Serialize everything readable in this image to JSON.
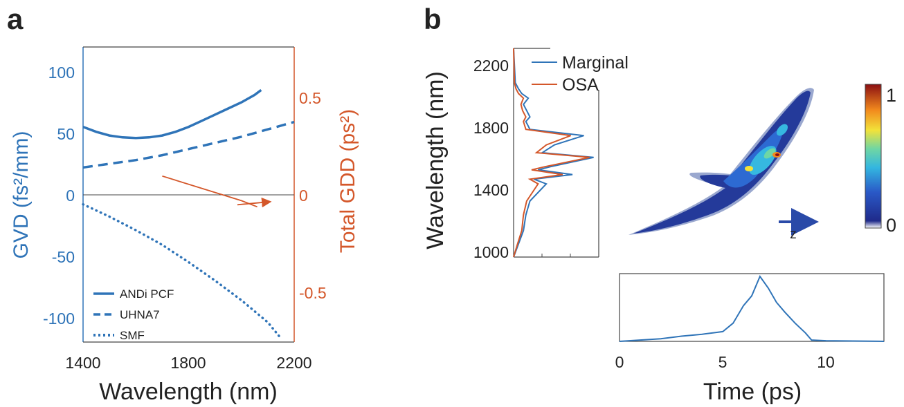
{
  "panels": {
    "a": {
      "letter": "a"
    },
    "b": {
      "letter": "b"
    }
  },
  "colors": {
    "blue": "#2f74b8",
    "orange": "#d4572a",
    "black": "#222222",
    "axis": "#444444"
  },
  "chart_data": [
    {
      "id": "panel-a",
      "type": "line",
      "xlabel": "Wavelength (nm)",
      "xlim": [
        1400,
        2200
      ],
      "xticks": [
        "1400",
        "1800",
        "2200"
      ],
      "ylabel_left": "GVD (fs²/mm)",
      "ylim_left": [
        -120,
        120
      ],
      "yticks_left": [
        "100",
        "50",
        "0",
        "-50",
        "-100"
      ],
      "ylabel_right": "Total GDD (ps²)",
      "ylim_right": [
        -0.72,
        0.72
      ],
      "yticks_right": [
        "0.5",
        "0",
        "-0.5"
      ],
      "legend": {
        "position": "bottom-left",
        "entries": [
          "ANDi PCF",
          "UHNA7",
          "SMF"
        ]
      },
      "series": [
        {
          "name": "ANDi PCF",
          "axis": "left",
          "style": "solid",
          "x": [
            1400,
            1450,
            1500,
            1550,
            1600,
            1650,
            1700,
            1750,
            1800,
            1850,
            1900,
            1950,
            2000,
            2050,
            2075
          ],
          "y": [
            55,
            51,
            48,
            46.5,
            46,
            46.5,
            48,
            51,
            55,
            60,
            65,
            70,
            75,
            81,
            85
          ]
        },
        {
          "name": "UHNA7",
          "axis": "left",
          "style": "dashed",
          "x": [
            1400,
            1500,
            1600,
            1700,
            1800,
            1900,
            2000,
            2100,
            2200
          ],
          "y": [
            22,
            25,
            28,
            32,
            37,
            42,
            47,
            53,
            59
          ]
        },
        {
          "name": "SMF",
          "axis": "left",
          "style": "dotted",
          "x": [
            1400,
            1500,
            1600,
            1700,
            1800,
            1900,
            2000,
            2100,
            2150
          ],
          "y": [
            -8,
            -18,
            -29,
            -41,
            -55,
            -70,
            -86,
            -104,
            -117
          ]
        },
        {
          "name": "",
          "axis": "right",
          "style": "solid",
          "color": "orange",
          "x": [
            1700,
            1850,
            2000,
            2060
          ],
          "y": [
            0.09,
            0.03,
            -0.03,
            -0.06
          ]
        },
        {
          "name": "",
          "axis": "right",
          "style": "solid",
          "color": "orange",
          "x": [
            1985,
            2110
          ],
          "y": [
            -0.05,
            -0.035
          ]
        }
      ]
    },
    {
      "id": "panel-b-marginal",
      "type": "line",
      "ylabel": "Wavelength (nm)",
      "ylim": [
        980,
        2320
      ],
      "yticks": [
        "2200",
        "1800",
        "1400",
        "1000"
      ],
      "legend": {
        "position": "top-right",
        "entries": [
          "Marginal",
          "OSA"
        ]
      },
      "series": [
        {
          "name": "Marginal",
          "color": "blue",
          "x": [
            0,
            0.05,
            0.12,
            0.15,
            0.2,
            0.4,
            0.25,
            0.72,
            0.3,
            0.45,
            0.98,
            0.35,
            0.5,
            0.86,
            0.2,
            0.15,
            0.2,
            0.16,
            0.12,
            0.18,
            0.1,
            0.06,
            0.02,
            0
          ],
          "y": [
            980,
            1050,
            1150,
            1250,
            1340,
            1450,
            1480,
            1510,
            1540,
            1560,
            1620,
            1650,
            1700,
            1760,
            1800,
            1850,
            1880,
            1920,
            1960,
            2000,
            2030,
            2060,
            2100,
            2320
          ]
        },
        {
          "name": "OSA",
          "color": "orange",
          "x": [
            0,
            0.04,
            0.1,
            0.12,
            0.16,
            0.3,
            0.2,
            0.6,
            0.22,
            0.38,
            0.93,
            0.28,
            0.4,
            0.7,
            0.15,
            0.12,
            0.15,
            0.11,
            0.09,
            0.12,
            0.06,
            0.03,
            0.01,
            0
          ],
          "y": [
            980,
            1050,
            1150,
            1250,
            1340,
            1450,
            1480,
            1510,
            1540,
            1560,
            1620,
            1650,
            1700,
            1760,
            1800,
            1850,
            1880,
            1920,
            1960,
            2000,
            2030,
            2060,
            2100,
            2320
          ]
        }
      ]
    },
    {
      "id": "panel-b-spectrogram",
      "type": "heatmap",
      "colorbar": {
        "ticks": [
          "1",
          "0"
        ],
        "range": [
          0,
          1
        ]
      },
      "arrow_label": "z"
    },
    {
      "id": "panel-b-temporal",
      "type": "line",
      "xlabel": "Time (ps)",
      "xlim": [
        0,
        12.8
      ],
      "xticks": [
        "0",
        "5",
        "10"
      ],
      "ylim": [
        0,
        1
      ],
      "series": [
        {
          "name": "",
          "x": [
            0,
            1,
            2,
            3,
            4,
            5,
            5.5,
            6,
            6.4,
            6.8,
            7.2,
            7.6,
            8,
            8.5,
            9,
            9.3,
            10,
            12.8
          ],
          "y": [
            0,
            0.02,
            0.04,
            0.08,
            0.11,
            0.15,
            0.28,
            0.55,
            0.7,
            1.0,
            0.82,
            0.6,
            0.45,
            0.28,
            0.13,
            0.02,
            0.01,
            0
          ]
        }
      ]
    }
  ]
}
